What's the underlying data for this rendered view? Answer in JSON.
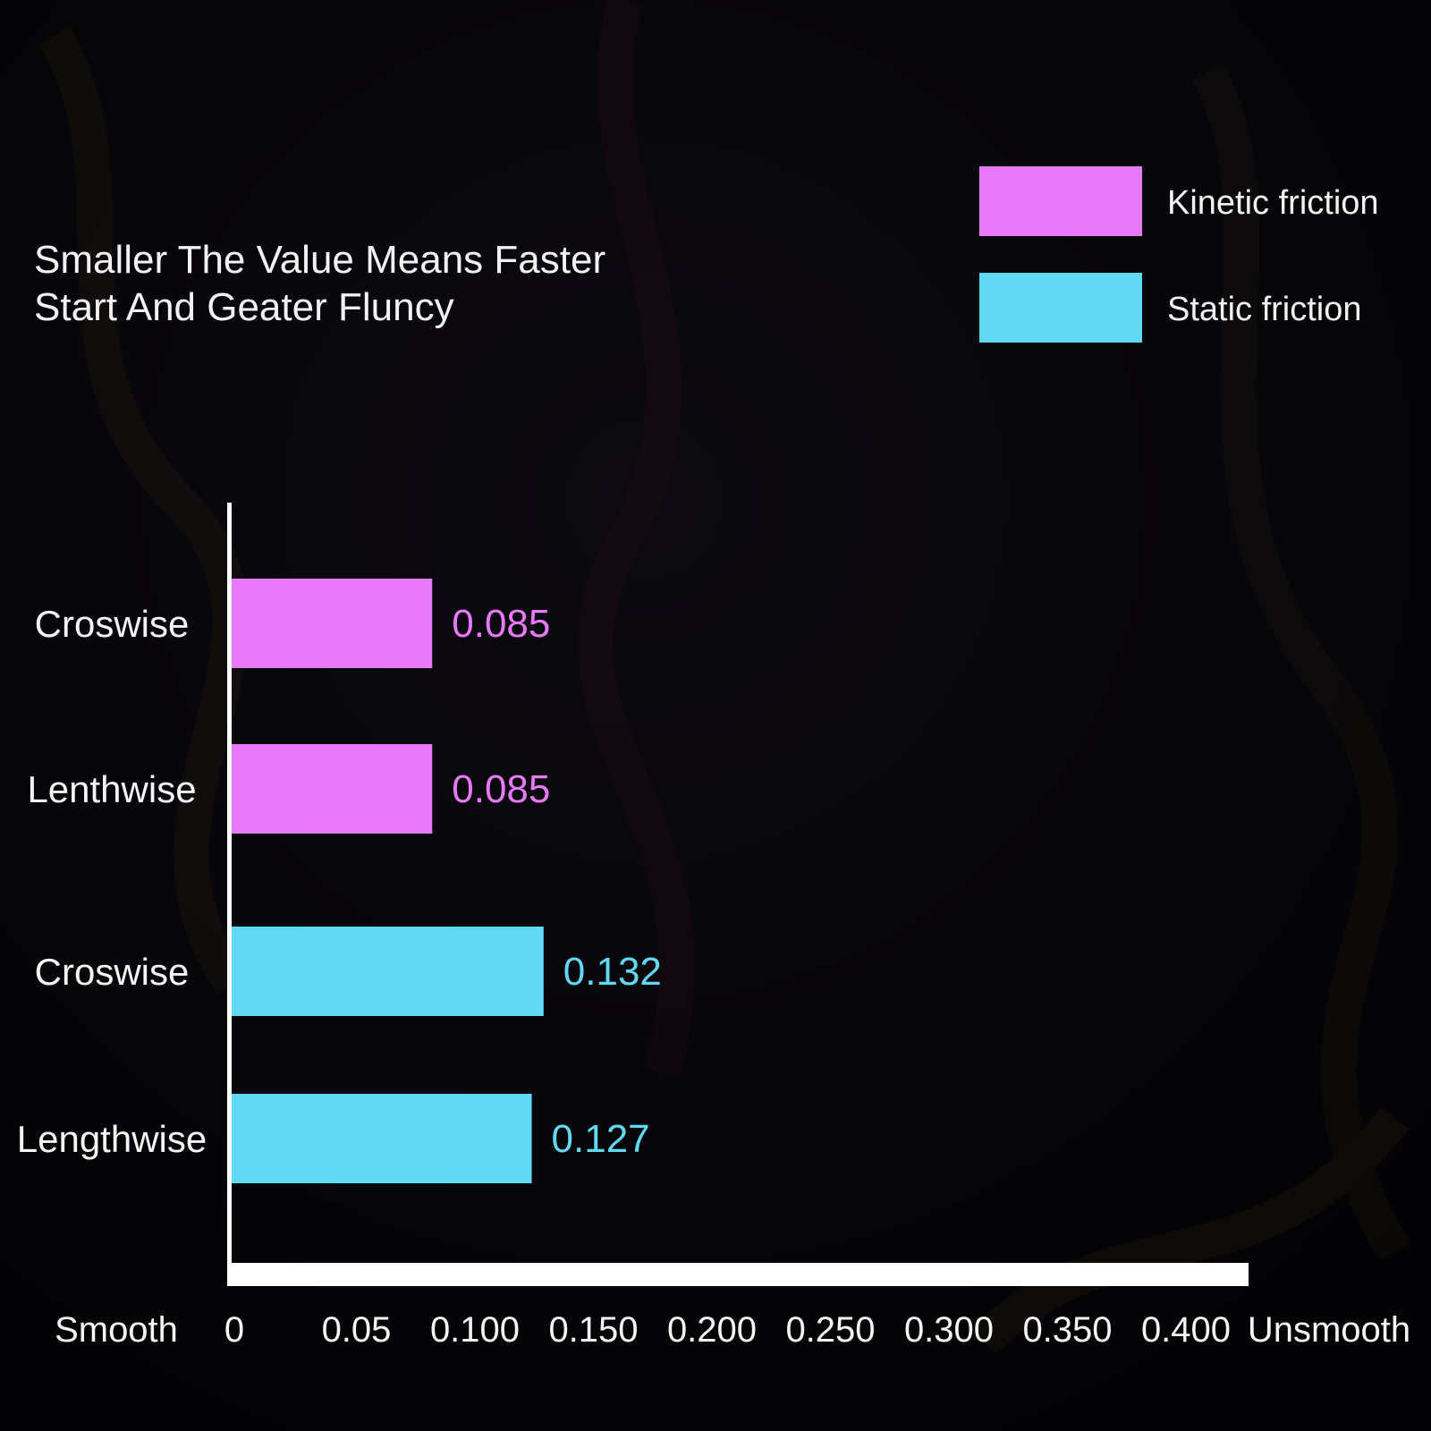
{
  "chart_data": {
    "type": "bar",
    "orientation": "horizontal",
    "title": [
      "Smaller The Value Means  Faster",
      "Start And Geater  Fluncy"
    ],
    "bars": [
      {
        "category": "Croswise",
        "series": "Kinetic friction",
        "value": 0.085,
        "label": "0.085"
      },
      {
        "category": "Lenthwise",
        "series": "Kinetic friction",
        "value": 0.085,
        "label": "0.085"
      },
      {
        "category": "Croswise",
        "series": "Static friction",
        "value": 0.132,
        "label": "0.132"
      },
      {
        "category": "Lengthwise",
        "series": "Static friction",
        "value": 0.127,
        "label": "0.127"
      }
    ],
    "series": [
      {
        "name": "Kinetic friction",
        "color": "#e879f9"
      },
      {
        "name": "Static friction",
        "color": "#62d9f4"
      }
    ],
    "x_ticks": [
      {
        "value": 0,
        "label": "0"
      },
      {
        "value": 0.05,
        "label": "0.05"
      },
      {
        "value": 0.1,
        "label": "0.100"
      },
      {
        "value": 0.15,
        "label": "0.150"
      },
      {
        "value": 0.2,
        "label": "0.200"
      },
      {
        "value": 0.25,
        "label": "0.250"
      },
      {
        "value": 0.3,
        "label": "0.300"
      },
      {
        "value": 0.35,
        "label": "0.350"
      },
      {
        "value": 0.4,
        "label": "0.400"
      }
    ],
    "x_axis_start_label": "Smooth",
    "x_axis_end_label": "Unsmooth",
    "xlim": [
      0,
      0.43
    ],
    "legend_position": "top-right",
    "grid": false
  },
  "colors": {
    "background": "#020204",
    "axis": "#ffffff",
    "text": "#f2f2f2"
  }
}
